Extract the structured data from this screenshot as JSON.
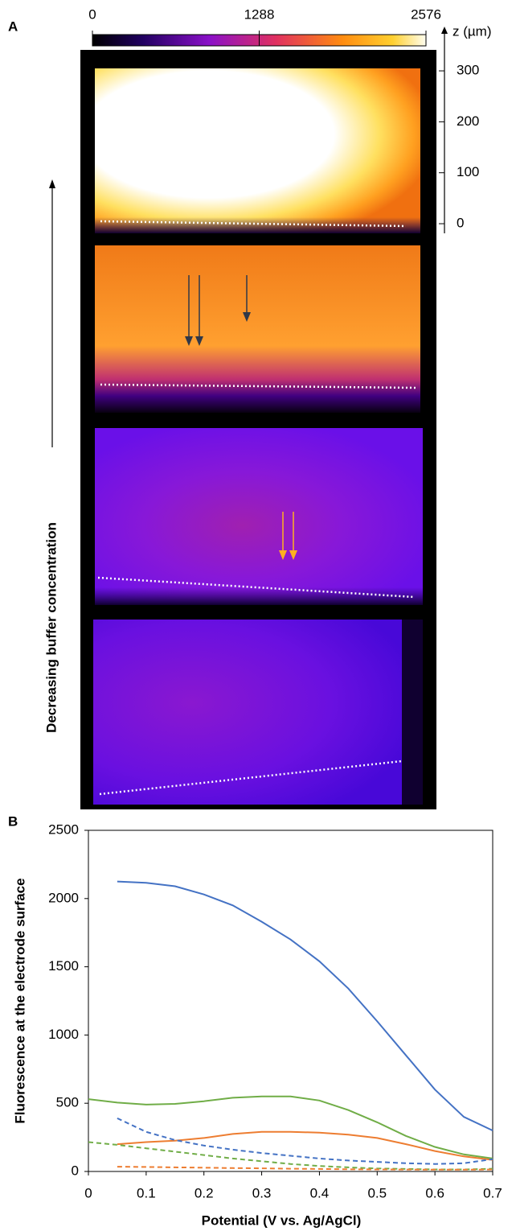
{
  "panel_a": {
    "label": "A",
    "colorbar": {
      "lim": [
        0,
        2576
      ],
      "ticks": [
        0,
        1288,
        2576
      ]
    },
    "z_axis": {
      "label": "z (µm)",
      "lim": [
        -20,
        320
      ],
      "ticks": [
        300,
        200,
        100,
        0
      ]
    },
    "side_label": "Decreasing buffer concentration"
  },
  "chart_data": {
    "type": "line",
    "label": "B",
    "x_label": "Potential (V vs. Ag/AgCl)",
    "y_label": "Fluorescence at the electrode surface",
    "x": [
      0,
      0.05,
      0.1,
      0.15,
      0.2,
      0.25,
      0.3,
      0.35,
      0.4,
      0.45,
      0.5,
      0.55,
      0.6,
      0.65,
      0.7
    ],
    "xlim": [
      0,
      0.7
    ],
    "xticks": [
      0,
      0.1,
      0.2,
      0.3,
      0.4,
      0.5,
      0.6,
      0.7
    ],
    "ylim": [
      0,
      2500
    ],
    "yticks": [
      0,
      500,
      1000,
      1500,
      2000,
      2500
    ],
    "series": [
      {
        "color": "#4472c4",
        "dash": false,
        "values": [
          null,
          2125,
          2115,
          2090,
          2030,
          1950,
          1830,
          1700,
          1540,
          1340,
          1100,
          850,
          600,
          400,
          300
        ]
      },
      {
        "color": "#70ad47",
        "dash": false,
        "values": [
          530,
          505,
          490,
          495,
          515,
          540,
          550,
          550,
          520,
          450,
          360,
          260,
          180,
          125,
          95
        ]
      },
      {
        "color": "#ed7d31",
        "dash": false,
        "values": [
          null,
          200,
          215,
          225,
          245,
          275,
          290,
          290,
          285,
          270,
          245,
          200,
          150,
          110,
          85
        ]
      },
      {
        "color": "#4472c4",
        "dash": true,
        "values": [
          null,
          390,
          290,
          230,
          190,
          160,
          135,
          115,
          95,
          80,
          70,
          60,
          55,
          60,
          90
        ]
      },
      {
        "color": "#70ad47",
        "dash": true,
        "values": [
          215,
          195,
          170,
          145,
          120,
          95,
          75,
          55,
          40,
          30,
          22,
          18,
          15,
          15,
          20
        ]
      },
      {
        "color": "#ed7d31",
        "dash": true,
        "values": [
          null,
          35,
          33,
          30,
          28,
          25,
          23,
          20,
          18,
          16,
          15,
          14,
          13,
          13,
          14
        ]
      }
    ]
  }
}
